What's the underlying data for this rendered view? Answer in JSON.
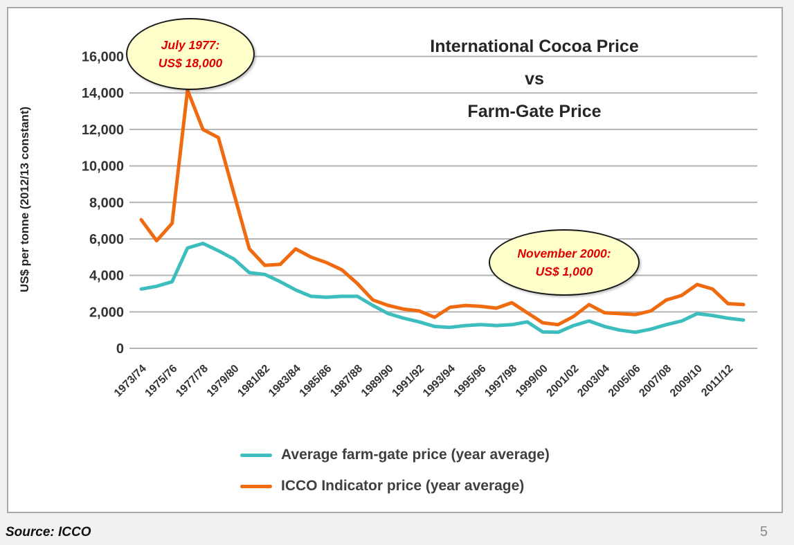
{
  "page": {
    "source": "Source: ICCO",
    "page_number": "5"
  },
  "chart": {
    "title_lines": [
      "International Cocoa Price",
      "vs",
      "Farm-Gate Price"
    ],
    "y_axis_title": "US$ per tonne (2012/13 constant)",
    "annotations": [
      {
        "line1": "July 1977:",
        "line2": "US$ 18,000"
      },
      {
        "line1": "November 2000:",
        "line2": "US$ 1,000"
      }
    ],
    "colors": {
      "farm_gate": "#3dbdbe",
      "icco": "#f06a10",
      "gridline": "#b3b3b3",
      "tick_text": "#333333",
      "annotation_fill": "#ffffcc",
      "annotation_text": "#e00000"
    }
  },
  "chart_data": {
    "type": "line",
    "title": "International Cocoa Price vs Farm-Gate Price",
    "xlabel": "",
    "ylabel": "US$ per tonne (2012/13 constant)",
    "ylim": [
      0,
      16000
    ],
    "y_ticks": [
      0,
      2000,
      4000,
      6000,
      8000,
      10000,
      12000,
      14000,
      16000
    ],
    "y_tick_labels": [
      "0",
      "2,000",
      "4,000",
      "6,000",
      "8,000",
      "10,000",
      "12,000",
      "14,000",
      "16,000"
    ],
    "grid": "horizontal",
    "legend_position": "bottom-center",
    "x": [
      "1973/74",
      "1974/75",
      "1975/76",
      "1976/77",
      "1977/78",
      "1978/79",
      "1979/80",
      "1980/81",
      "1981/82",
      "1982/83",
      "1983/84",
      "1984/85",
      "1985/86",
      "1986/87",
      "1987/88",
      "1988/89",
      "1989/90",
      "1990/91",
      "1991/92",
      "1992/93",
      "1993/94",
      "1994/95",
      "1995/96",
      "1996/97",
      "1997/98",
      "1998/99",
      "1999/00",
      "2000/01",
      "2001/02",
      "2002/03",
      "2003/04",
      "2004/05",
      "2005/06",
      "2006/07",
      "2007/08",
      "2008/09",
      "2009/10",
      "2010/11",
      "2011/12",
      "2012/13"
    ],
    "x_tick_shown_every": 2,
    "series": [
      {
        "name": "Average farm-gate price (year average)",
        "color": "#3dbdbe",
        "values": [
          3250,
          3400,
          3650,
          5500,
          5750,
          5350,
          4900,
          4150,
          4050,
          3650,
          3200,
          2850,
          2800,
          2850,
          2850,
          2350,
          1900,
          1650,
          1450,
          1200,
          1150,
          1250,
          1300,
          1250,
          1300,
          1450,
          900,
          880,
          1250,
          1500,
          1200,
          1000,
          880,
          1050,
          1300,
          1500,
          1900,
          1800,
          1650,
          1550
        ]
      },
      {
        "name": "ICCO Indicator price (year average)",
        "color": "#f06a10",
        "values": [
          7050,
          5900,
          6850,
          14150,
          12000,
          11550,
          8500,
          5450,
          4550,
          4600,
          5450,
          5000,
          4700,
          4300,
          3550,
          2650,
          2350,
          2150,
          2050,
          1700,
          2250,
          2350,
          2300,
          2200,
          2500,
          1950,
          1400,
          1300,
          1750,
          2400,
          1950,
          1900,
          1850,
          2050,
          2650,
          2900,
          3500,
          3250,
          2450,
          2400
        ]
      }
    ],
    "annotations": [
      {
        "text": "July 1977: US$ 18,000",
        "refers_to": "monthly peak of ICCO price"
      },
      {
        "text": "November 2000: US$ 1,000",
        "refers_to": "monthly low of ICCO price"
      }
    ]
  }
}
